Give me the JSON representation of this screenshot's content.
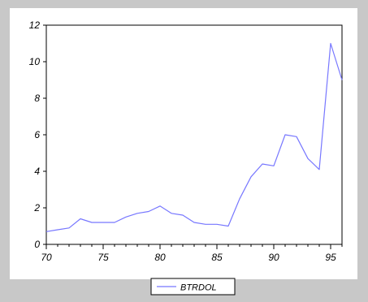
{
  "chart_data": {
    "type": "line",
    "title": "",
    "xlabel": "",
    "ylabel": "",
    "xlim": [
      70,
      96
    ],
    "ylim": [
      0,
      12
    ],
    "x_ticks": [
      70,
      75,
      80,
      85,
      90,
      95
    ],
    "x_tick_labels": [
      "70",
      "75",
      "80",
      "85",
      "90",
      "95"
    ],
    "y_ticks": [
      0,
      2,
      4,
      6,
      8,
      10,
      12
    ],
    "y_tick_labels": [
      "0",
      "2",
      "4",
      "6",
      "8",
      "10",
      "12"
    ],
    "grid": false,
    "legend_position": "bottom-center",
    "series": [
      {
        "name": "BTRDOL",
        "color": "#7777ff",
        "x": [
          70,
          71,
          72,
          73,
          74,
          75,
          76,
          77,
          78,
          79,
          80,
          81,
          82,
          83,
          84,
          85,
          86,
          87,
          88,
          89,
          90,
          91,
          92,
          93,
          94,
          95,
          96
        ],
        "y": [
          0.7,
          0.8,
          0.9,
          1.4,
          1.2,
          1.2,
          1.2,
          1.5,
          1.7,
          1.8,
          2.1,
          1.7,
          1.6,
          1.2,
          1.1,
          1.1,
          1.0,
          2.5,
          3.7,
          4.4,
          4.3,
          6.0,
          5.9,
          4.7,
          4.1,
          11.0,
          9.0
        ]
      }
    ]
  }
}
